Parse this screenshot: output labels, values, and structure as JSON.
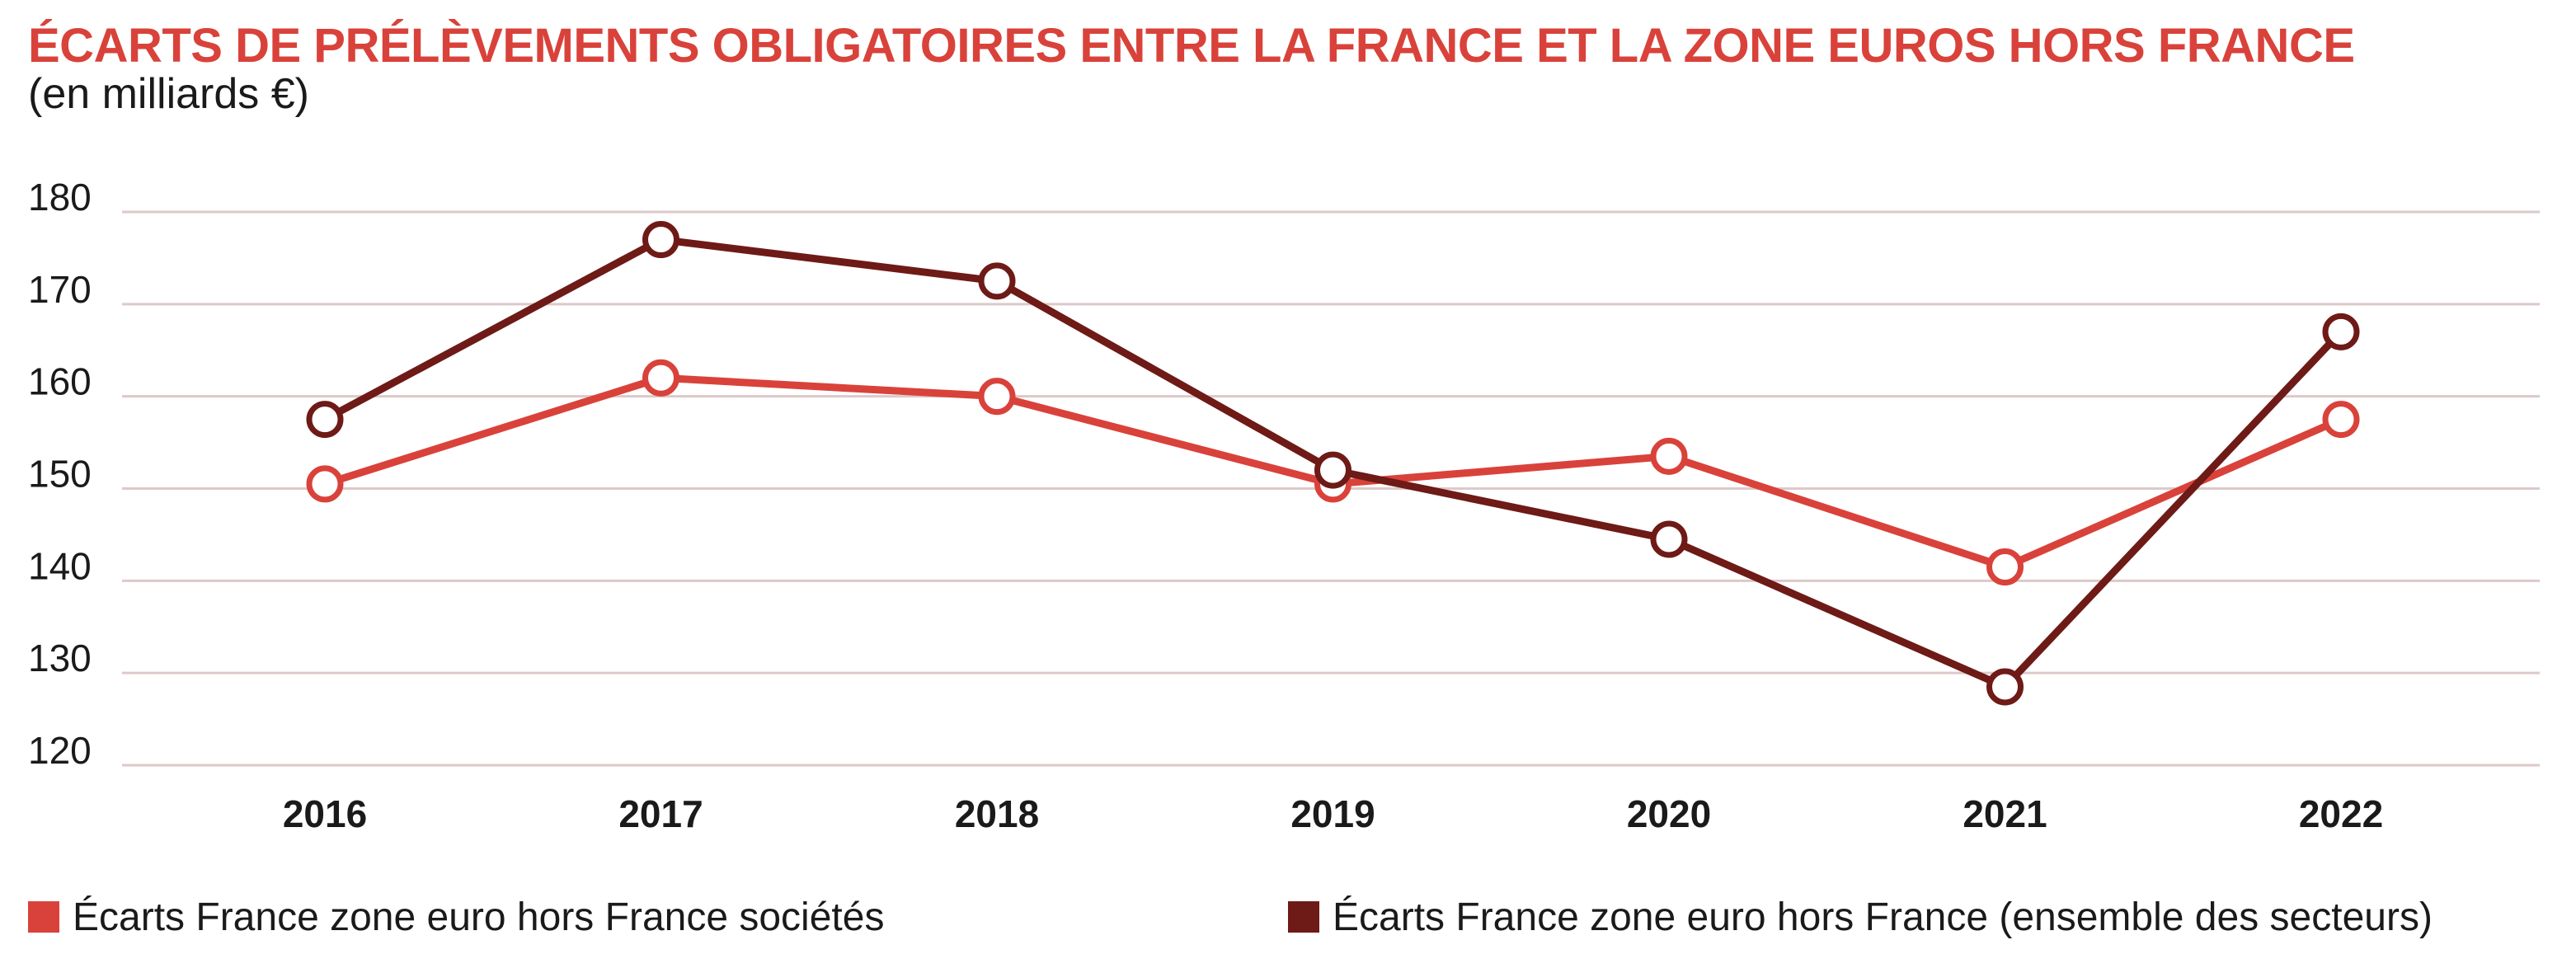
{
  "chart_data": {
    "type": "line",
    "title": "ÉCARTS DE PRÉLÈVEMENTS OBLIGATOIRES ENTRE LA FRANCE ET LA ZONE EUROS HORS FRANCE",
    "subtitle": "(en milliards €)",
    "x": [
      "2016",
      "2017",
      "2018",
      "2019",
      "2020",
      "2021",
      "2022"
    ],
    "ylim": [
      120,
      180
    ],
    "yticks": [
      "120",
      "130",
      "140",
      "150",
      "160",
      "170",
      "180"
    ],
    "grid": true,
    "legend_position": "bottom",
    "series": [
      {
        "name": "Écarts France zone euro hors France sociétés",
        "color": "#d9423a",
        "values": [
          150.5,
          162,
          160,
          150.5,
          153.5,
          141.5,
          157.5
        ]
      },
      {
        "name": "Écarts France zone euro hors France (ensemble des secteurs)",
        "color": "#6e1a17",
        "values": [
          157.5,
          177,
          172.5,
          152,
          144.5,
          128.5,
          167
        ]
      }
    ]
  }
}
